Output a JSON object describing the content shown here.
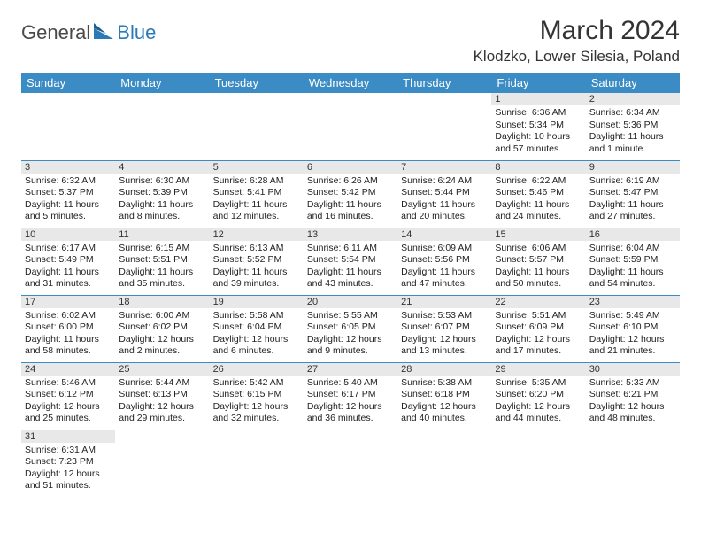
{
  "logo": {
    "general": "General",
    "blue": "Blue"
  },
  "title": "March 2024",
  "location": "Klodzko, Lower Silesia, Poland",
  "colors": {
    "header_bg": "#3b8bc4",
    "header_text": "#ffffff",
    "daynum_bg": "#e8e8e8",
    "border": "#3b8bc4",
    "logo_general": "#4a4a4a",
    "logo_blue": "#2a7ab8"
  },
  "weekdays": [
    "Sunday",
    "Monday",
    "Tuesday",
    "Wednesday",
    "Thursday",
    "Friday",
    "Saturday"
  ],
  "days": {
    "1": {
      "sunrise": "6:36 AM",
      "sunset": "5:34 PM",
      "daylight": "10 hours and 57 minutes."
    },
    "2": {
      "sunrise": "6:34 AM",
      "sunset": "5:36 PM",
      "daylight": "11 hours and 1 minute."
    },
    "3": {
      "sunrise": "6:32 AM",
      "sunset": "5:37 PM",
      "daylight": "11 hours and 5 minutes."
    },
    "4": {
      "sunrise": "6:30 AM",
      "sunset": "5:39 PM",
      "daylight": "11 hours and 8 minutes."
    },
    "5": {
      "sunrise": "6:28 AM",
      "sunset": "5:41 PM",
      "daylight": "11 hours and 12 minutes."
    },
    "6": {
      "sunrise": "6:26 AM",
      "sunset": "5:42 PM",
      "daylight": "11 hours and 16 minutes."
    },
    "7": {
      "sunrise": "6:24 AM",
      "sunset": "5:44 PM",
      "daylight": "11 hours and 20 minutes."
    },
    "8": {
      "sunrise": "6:22 AM",
      "sunset": "5:46 PM",
      "daylight": "11 hours and 24 minutes."
    },
    "9": {
      "sunrise": "6:19 AM",
      "sunset": "5:47 PM",
      "daylight": "11 hours and 27 minutes."
    },
    "10": {
      "sunrise": "6:17 AM",
      "sunset": "5:49 PM",
      "daylight": "11 hours and 31 minutes."
    },
    "11": {
      "sunrise": "6:15 AM",
      "sunset": "5:51 PM",
      "daylight": "11 hours and 35 minutes."
    },
    "12": {
      "sunrise": "6:13 AM",
      "sunset": "5:52 PM",
      "daylight": "11 hours and 39 minutes."
    },
    "13": {
      "sunrise": "6:11 AM",
      "sunset": "5:54 PM",
      "daylight": "11 hours and 43 minutes."
    },
    "14": {
      "sunrise": "6:09 AM",
      "sunset": "5:56 PM",
      "daylight": "11 hours and 47 minutes."
    },
    "15": {
      "sunrise": "6:06 AM",
      "sunset": "5:57 PM",
      "daylight": "11 hours and 50 minutes."
    },
    "16": {
      "sunrise": "6:04 AM",
      "sunset": "5:59 PM",
      "daylight": "11 hours and 54 minutes."
    },
    "17": {
      "sunrise": "6:02 AM",
      "sunset": "6:00 PM",
      "daylight": "11 hours and 58 minutes."
    },
    "18": {
      "sunrise": "6:00 AM",
      "sunset": "6:02 PM",
      "daylight": "12 hours and 2 minutes."
    },
    "19": {
      "sunrise": "5:58 AM",
      "sunset": "6:04 PM",
      "daylight": "12 hours and 6 minutes."
    },
    "20": {
      "sunrise": "5:55 AM",
      "sunset": "6:05 PM",
      "daylight": "12 hours and 9 minutes."
    },
    "21": {
      "sunrise": "5:53 AM",
      "sunset": "6:07 PM",
      "daylight": "12 hours and 13 minutes."
    },
    "22": {
      "sunrise": "5:51 AM",
      "sunset": "6:09 PM",
      "daylight": "12 hours and 17 minutes."
    },
    "23": {
      "sunrise": "5:49 AM",
      "sunset": "6:10 PM",
      "daylight": "12 hours and 21 minutes."
    },
    "24": {
      "sunrise": "5:46 AM",
      "sunset": "6:12 PM",
      "daylight": "12 hours and 25 minutes."
    },
    "25": {
      "sunrise": "5:44 AM",
      "sunset": "6:13 PM",
      "daylight": "12 hours and 29 minutes."
    },
    "26": {
      "sunrise": "5:42 AM",
      "sunset": "6:15 PM",
      "daylight": "12 hours and 32 minutes."
    },
    "27": {
      "sunrise": "5:40 AM",
      "sunset": "6:17 PM",
      "daylight": "12 hours and 36 minutes."
    },
    "28": {
      "sunrise": "5:38 AM",
      "sunset": "6:18 PM",
      "daylight": "12 hours and 40 minutes."
    },
    "29": {
      "sunrise": "5:35 AM",
      "sunset": "6:20 PM",
      "daylight": "12 hours and 44 minutes."
    },
    "30": {
      "sunrise": "5:33 AM",
      "sunset": "6:21 PM",
      "daylight": "12 hours and 48 minutes."
    },
    "31": {
      "sunrise": "6:31 AM",
      "sunset": "7:23 PM",
      "daylight": "12 hours and 51 minutes."
    }
  },
  "labels": {
    "sunrise": "Sunrise:",
    "sunset": "Sunset:",
    "daylight": "Daylight:"
  },
  "grid": [
    [
      null,
      null,
      null,
      null,
      null,
      "1",
      "2"
    ],
    [
      "3",
      "4",
      "5",
      "6",
      "7",
      "8",
      "9"
    ],
    [
      "10",
      "11",
      "12",
      "13",
      "14",
      "15",
      "16"
    ],
    [
      "17",
      "18",
      "19",
      "20",
      "21",
      "22",
      "23"
    ],
    [
      "24",
      "25",
      "26",
      "27",
      "28",
      "29",
      "30"
    ],
    [
      "31",
      null,
      null,
      null,
      null,
      null,
      null
    ]
  ]
}
